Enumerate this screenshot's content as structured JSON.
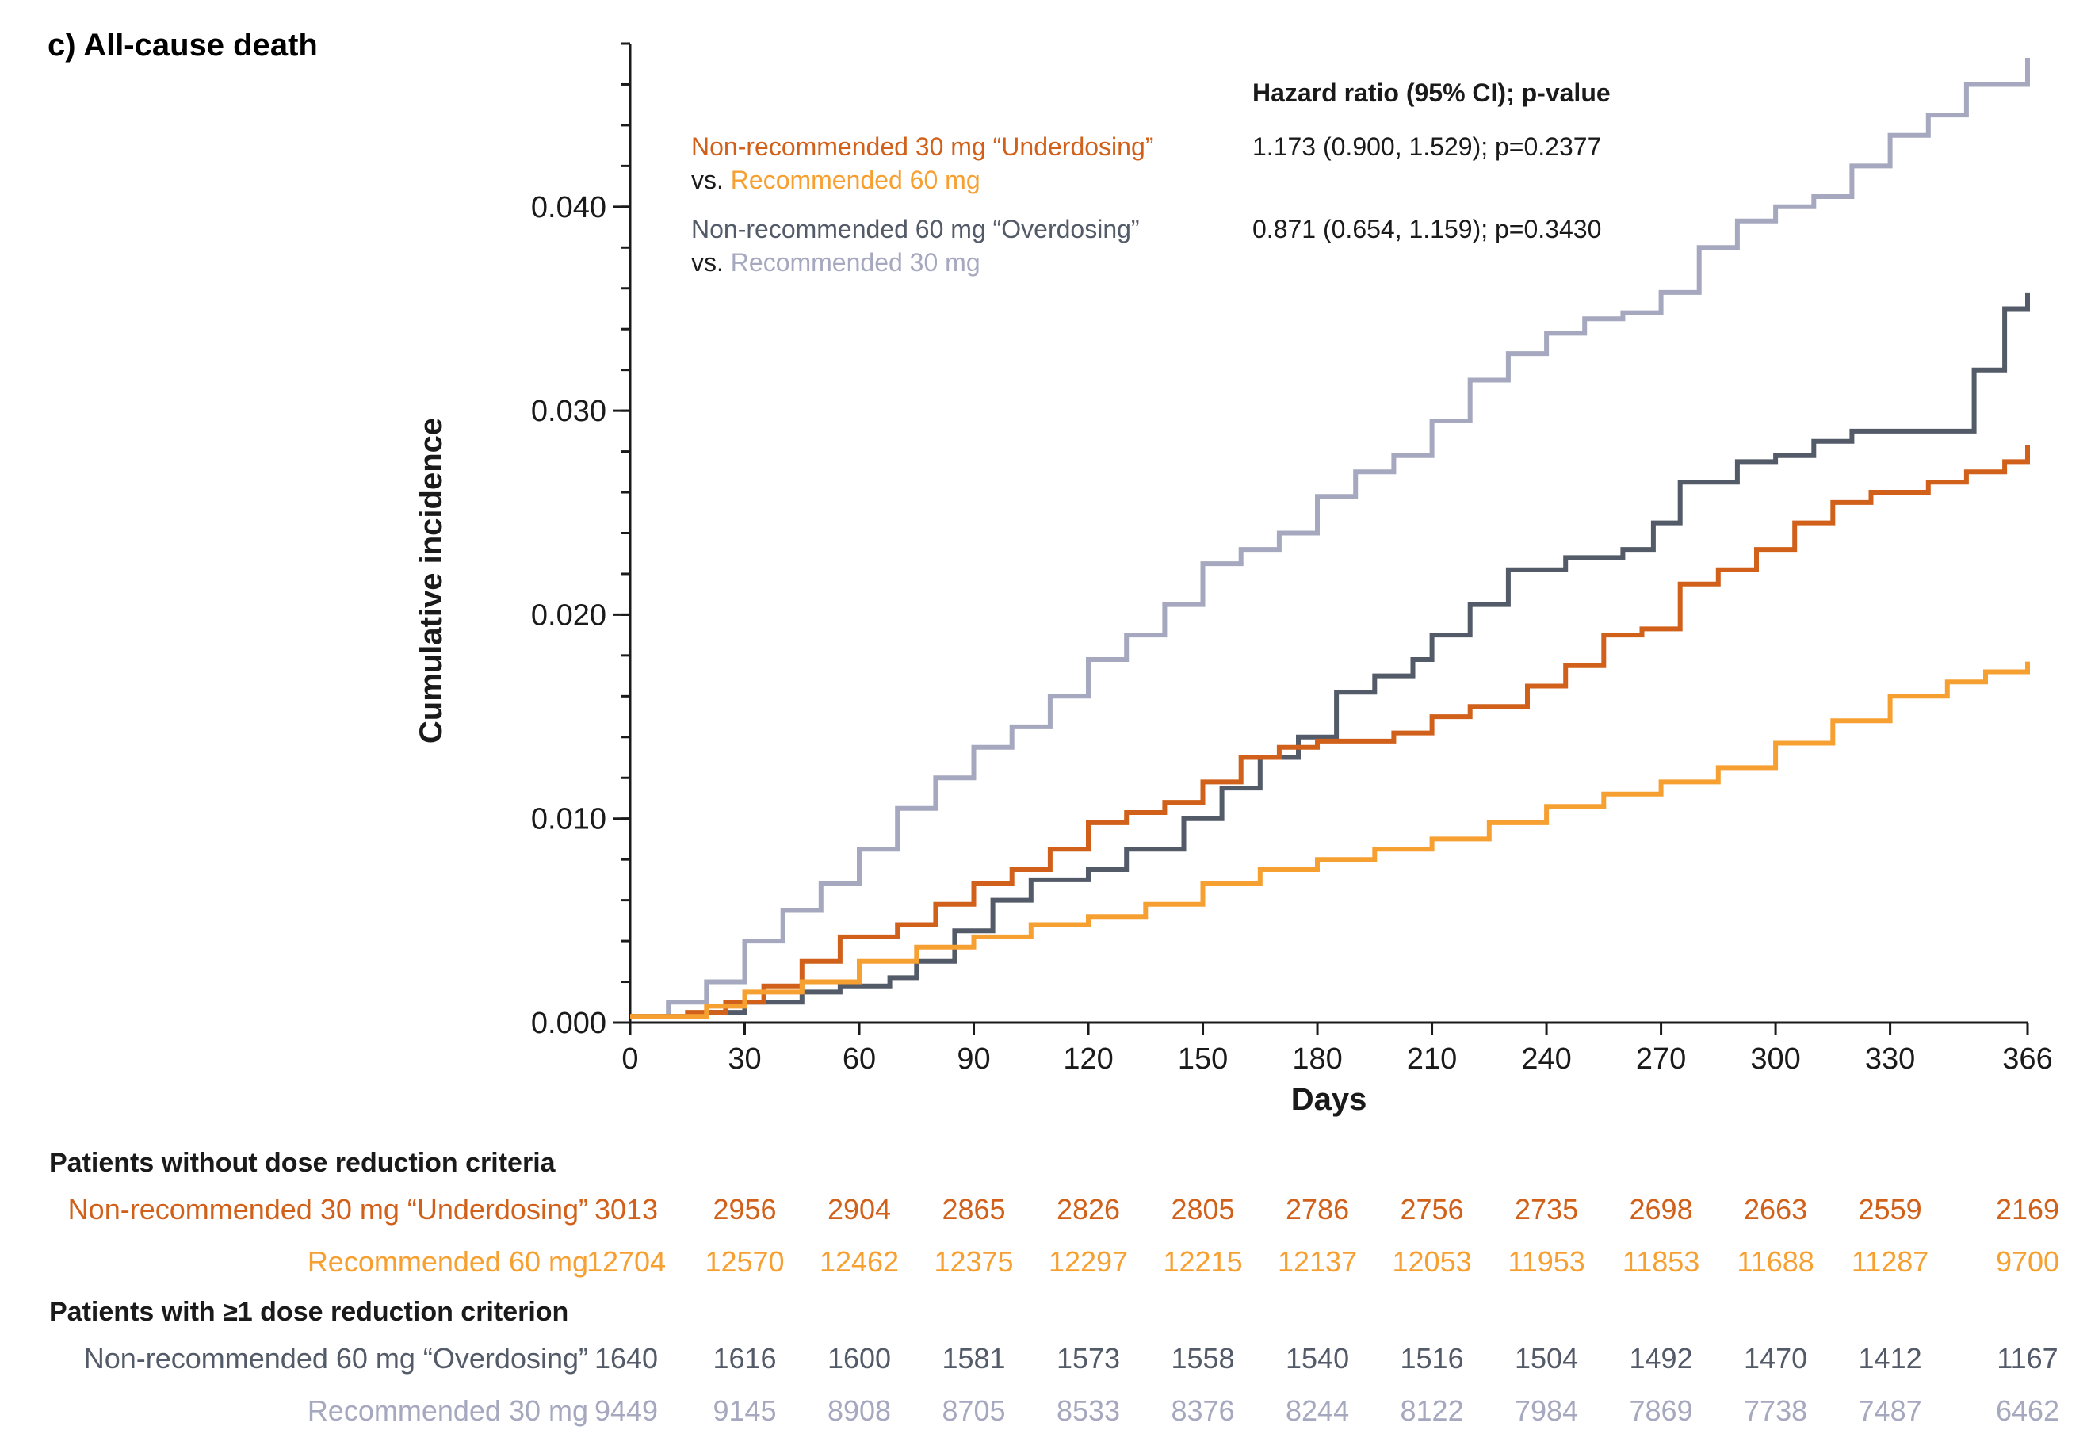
{
  "panel_title": "c) All-cause death",
  "colors": {
    "underdosing": "#D0601A",
    "rec60": "#F7A032",
    "overdosing": "#535A68",
    "rec30": "#A5A8BE",
    "axis": "#1a1a1a"
  },
  "legend": {
    "header": "Hazard ratio (95% CI); p-value",
    "rows": [
      {
        "line1": "Non-recommended 30 mg “Underdosing”",
        "vs_prefix": "vs. ",
        "line2": "Recommended 60 mg",
        "hr": "1.173 (0.900, 1.529); p=0.2377",
        "color1": "underdosing",
        "color2": "rec60"
      },
      {
        "line1": "Non-recommended 60 mg “Overdosing”",
        "vs_prefix": "vs. ",
        "line2": "Recommended 30 mg",
        "hr": "0.871 (0.654, 1.159); p=0.3430",
        "color1": "overdosing",
        "color2": "rec30"
      }
    ]
  },
  "chart_data": {
    "type": "line",
    "title": "c) All-cause death",
    "xlabel": "Days",
    "ylabel": "Cumulative incidence",
    "xlim": [
      0,
      366
    ],
    "ylim": [
      0,
      0.048
    ],
    "xticks": [
      0,
      30,
      60,
      90,
      120,
      150,
      180,
      210,
      240,
      270,
      300,
      330,
      366
    ],
    "xtick_labels": [
      "0",
      "30",
      "60",
      "90",
      "120",
      "150",
      "180",
      "210",
      "240",
      "270",
      "300",
      "330",
      "366"
    ],
    "yticks": [
      0,
      0.01,
      0.02,
      0.03,
      0.04
    ],
    "ytick_labels": [
      "0.000",
      "0.010",
      "0.020",
      "0.030",
      "0.040"
    ],
    "series": [
      {
        "name": "Recommended 30 mg",
        "color": "rec30",
        "points": [
          [
            0,
            0.0003
          ],
          [
            10,
            0.001
          ],
          [
            20,
            0.002
          ],
          [
            30,
            0.004
          ],
          [
            40,
            0.0055
          ],
          [
            50,
            0.0068
          ],
          [
            60,
            0.0085
          ],
          [
            70,
            0.0105
          ],
          [
            80,
            0.012
          ],
          [
            90,
            0.0135
          ],
          [
            100,
            0.0145
          ],
          [
            110,
            0.016
          ],
          [
            120,
            0.0178
          ],
          [
            130,
            0.019
          ],
          [
            140,
            0.0205
          ],
          [
            150,
            0.0225
          ],
          [
            160,
            0.0232
          ],
          [
            170,
            0.024
          ],
          [
            180,
            0.0258
          ],
          [
            190,
            0.027
          ],
          [
            200,
            0.0278
          ],
          [
            210,
            0.0295
          ],
          [
            220,
            0.0315
          ],
          [
            230,
            0.0328
          ],
          [
            240,
            0.0338
          ],
          [
            250,
            0.0345
          ],
          [
            260,
            0.0348
          ],
          [
            270,
            0.0358
          ],
          [
            280,
            0.038
          ],
          [
            290,
            0.0393
          ],
          [
            300,
            0.04
          ],
          [
            310,
            0.0405
          ],
          [
            320,
            0.042
          ],
          [
            330,
            0.0435
          ],
          [
            340,
            0.0445
          ],
          [
            350,
            0.046
          ],
          [
            366,
            0.0473
          ]
        ]
      },
      {
        "name": "Non-recommended 60 mg “Overdosing”",
        "color": "overdosing",
        "points": [
          [
            0,
            0.0003
          ],
          [
            20,
            0.0005
          ],
          [
            30,
            0.001
          ],
          [
            45,
            0.0015
          ],
          [
            55,
            0.0018
          ],
          [
            68,
            0.0022
          ],
          [
            75,
            0.003
          ],
          [
            85,
            0.0045
          ],
          [
            95,
            0.006
          ],
          [
            105,
            0.007
          ],
          [
            120,
            0.0075
          ],
          [
            130,
            0.0085
          ],
          [
            145,
            0.01
          ],
          [
            155,
            0.0115
          ],
          [
            165,
            0.013
          ],
          [
            175,
            0.014
          ],
          [
            185,
            0.0162
          ],
          [
            195,
            0.017
          ],
          [
            205,
            0.0178
          ],
          [
            210,
            0.019
          ],
          [
            220,
            0.0205
          ],
          [
            230,
            0.0222
          ],
          [
            245,
            0.0228
          ],
          [
            260,
            0.0232
          ],
          [
            268,
            0.0245
          ],
          [
            275,
            0.0265
          ],
          [
            290,
            0.0275
          ],
          [
            300,
            0.0278
          ],
          [
            310,
            0.0285
          ],
          [
            320,
            0.029
          ],
          [
            340,
            0.029
          ],
          [
            352,
            0.032
          ],
          [
            360,
            0.035
          ],
          [
            366,
            0.0358
          ]
        ]
      },
      {
        "name": "Non-recommended 30 mg “Underdosing”",
        "color": "underdosing",
        "points": [
          [
            0,
            0.0003
          ],
          [
            15,
            0.0005
          ],
          [
            25,
            0.001
          ],
          [
            35,
            0.0018
          ],
          [
            45,
            0.003
          ],
          [
            55,
            0.0042
          ],
          [
            70,
            0.0048
          ],
          [
            80,
            0.0058
          ],
          [
            90,
            0.0068
          ],
          [
            100,
            0.0075
          ],
          [
            110,
            0.0085
          ],
          [
            120,
            0.0098
          ],
          [
            130,
            0.0103
          ],
          [
            140,
            0.0108
          ],
          [
            150,
            0.0118
          ],
          [
            160,
            0.013
          ],
          [
            170,
            0.0135
          ],
          [
            180,
            0.0138
          ],
          [
            190,
            0.0138
          ],
          [
            200,
            0.0142
          ],
          [
            210,
            0.015
          ],
          [
            220,
            0.0155
          ],
          [
            235,
            0.0165
          ],
          [
            245,
            0.0175
          ],
          [
            255,
            0.019
          ],
          [
            265,
            0.0193
          ],
          [
            275,
            0.0215
          ],
          [
            285,
            0.0222
          ],
          [
            295,
            0.0232
          ],
          [
            305,
            0.0245
          ],
          [
            315,
            0.0255
          ],
          [
            325,
            0.026
          ],
          [
            340,
            0.0265
          ],
          [
            350,
            0.027
          ],
          [
            360,
            0.0275
          ],
          [
            366,
            0.0283
          ]
        ]
      },
      {
        "name": "Recommended 60 mg",
        "color": "rec60",
        "points": [
          [
            0,
            0.0003
          ],
          [
            20,
            0.0008
          ],
          [
            30,
            0.0015
          ],
          [
            45,
            0.002
          ],
          [
            60,
            0.003
          ],
          [
            75,
            0.0037
          ],
          [
            90,
            0.0042
          ],
          [
            105,
            0.0048
          ],
          [
            120,
            0.0052
          ],
          [
            135,
            0.0058
          ],
          [
            150,
            0.0068
          ],
          [
            165,
            0.0075
          ],
          [
            180,
            0.008
          ],
          [
            195,
            0.0085
          ],
          [
            210,
            0.009
          ],
          [
            225,
            0.0098
          ],
          [
            240,
            0.0106
          ],
          [
            255,
            0.0112
          ],
          [
            270,
            0.0118
          ],
          [
            285,
            0.0125
          ],
          [
            300,
            0.0137
          ],
          [
            315,
            0.0148
          ],
          [
            330,
            0.016
          ],
          [
            345,
            0.0167
          ],
          [
            355,
            0.0172
          ],
          [
            366,
            0.0177
          ]
        ]
      }
    ]
  },
  "risk_table": {
    "timepoints": [
      "0",
      "30",
      "60",
      "90",
      "120",
      "150",
      "180",
      "210",
      "240",
      "270",
      "300",
      "330",
      "366"
    ],
    "groups": [
      {
        "heading": "Patients without dose reduction criteria",
        "rows": [
          {
            "label": "Non-recommended 30 mg “Underdosing”",
            "color": "underdosing",
            "values": [
              "3013",
              "2956",
              "2904",
              "2865",
              "2826",
              "2805",
              "2786",
              "2756",
              "2735",
              "2698",
              "2663",
              "2559",
              "2169"
            ]
          },
          {
            "label": "Recommended 60 mg",
            "color": "rec60",
            "values": [
              "12704",
              "12570",
              "12462",
              "12375",
              "12297",
              "12215",
              "12137",
              "12053",
              "11953",
              "11853",
              "11688",
              "11287",
              "9700"
            ]
          }
        ]
      },
      {
        "heading": "Patients with ≥1 dose reduction criterion",
        "rows": [
          {
            "label": "Non-recommended 60 mg “Overdosing”",
            "color": "overdosing",
            "values": [
              "1640",
              "1616",
              "1600",
              "1581",
              "1573",
              "1558",
              "1540",
              "1516",
              "1504",
              "1492",
              "1470",
              "1412",
              "1167"
            ]
          },
          {
            "label": "Recommended 30 mg",
            "color": "rec30",
            "values": [
              "9449",
              "9145",
              "8908",
              "8705",
              "8533",
              "8376",
              "8244",
              "8122",
              "7984",
              "7869",
              "7738",
              "7487",
              "6462"
            ]
          }
        ]
      }
    ]
  }
}
